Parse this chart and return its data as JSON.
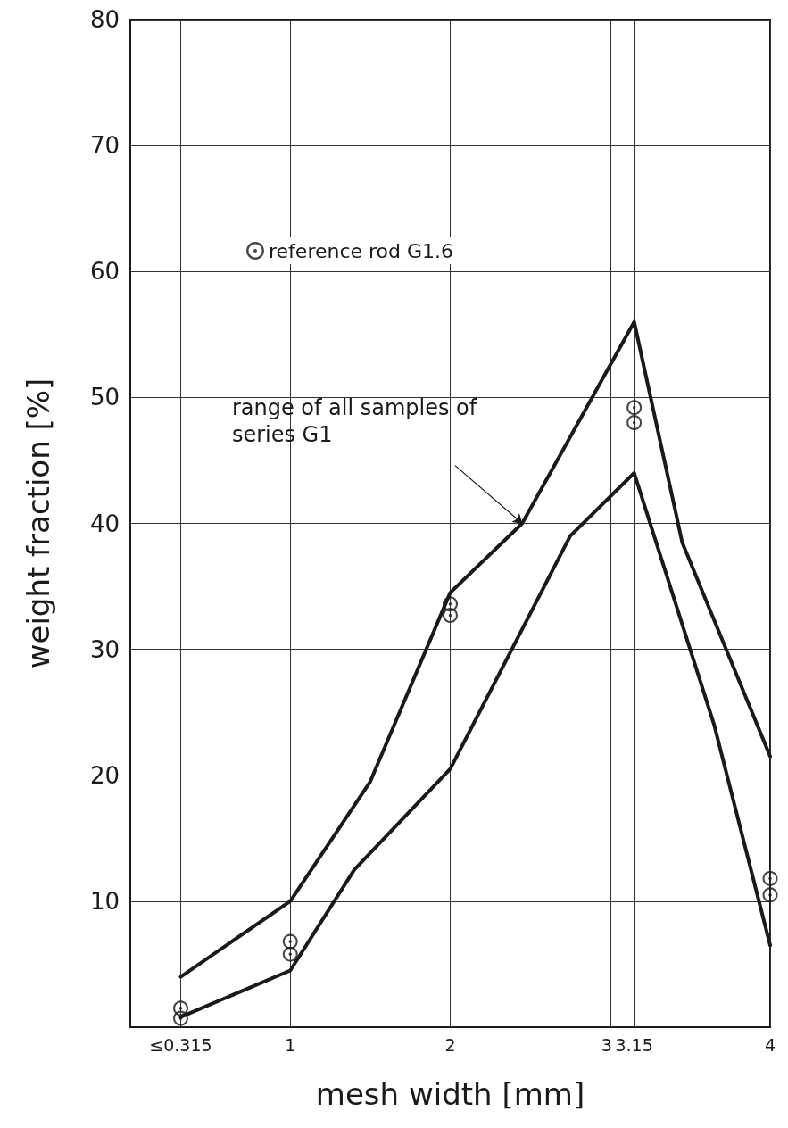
{
  "chart_data": {
    "type": "line",
    "xlabel": "mesh width [mm]",
    "ylabel": "weight fraction [%]",
    "xlim": [
      0,
      4
    ],
    "xticks": [
      {
        "value": 0.315,
        "label": "≤0.315"
      },
      1,
      2,
      3,
      3.15,
      4
    ],
    "ylim": [
      0,
      80
    ],
    "yticks": [
      10,
      20,
      30,
      40,
      50,
      60,
      70,
      80
    ],
    "grid": true,
    "legend": "top left",
    "marker": "none",
    "line_style": "solid",
    "series": [
      {
        "color": "#1a1a1a",
        "x": [
          0.315,
          1,
          1.5,
          2,
          2.45,
          3.15,
          3.45,
          4
        ],
        "values": [
          4,
          10,
          19.5,
          34.5,
          40,
          56,
          38.5,
          21.5
        ]
      },
      {
        "color": "#1a1a1a",
        "x": [
          0.315,
          1,
          1.4,
          2,
          2.75,
          3.15,
          3.65,
          4
        ],
        "values": [
          0.8,
          4.5,
          12.5,
          20.5,
          39,
          44,
          24,
          6.5
        ]
      },
      {
        "type": "scatter",
        "marker": "circle",
        "name": "reference rod G1.6",
        "color": "#1a1a1a",
        "x": [
          0.315,
          0.315,
          1,
          1,
          2,
          2,
          3.15,
          3.15,
          4,
          4
        ],
        "values": [
          1.5,
          0.7,
          6.8,
          5.8,
          33.6,
          32.7,
          49.2,
          48,
          11.8,
          10.5
        ]
      }
    ],
    "annotations": [
      {
        "text": "range of all samples of series G1",
        "x": 2.45,
        "y": 40
      }
    ]
  }
}
